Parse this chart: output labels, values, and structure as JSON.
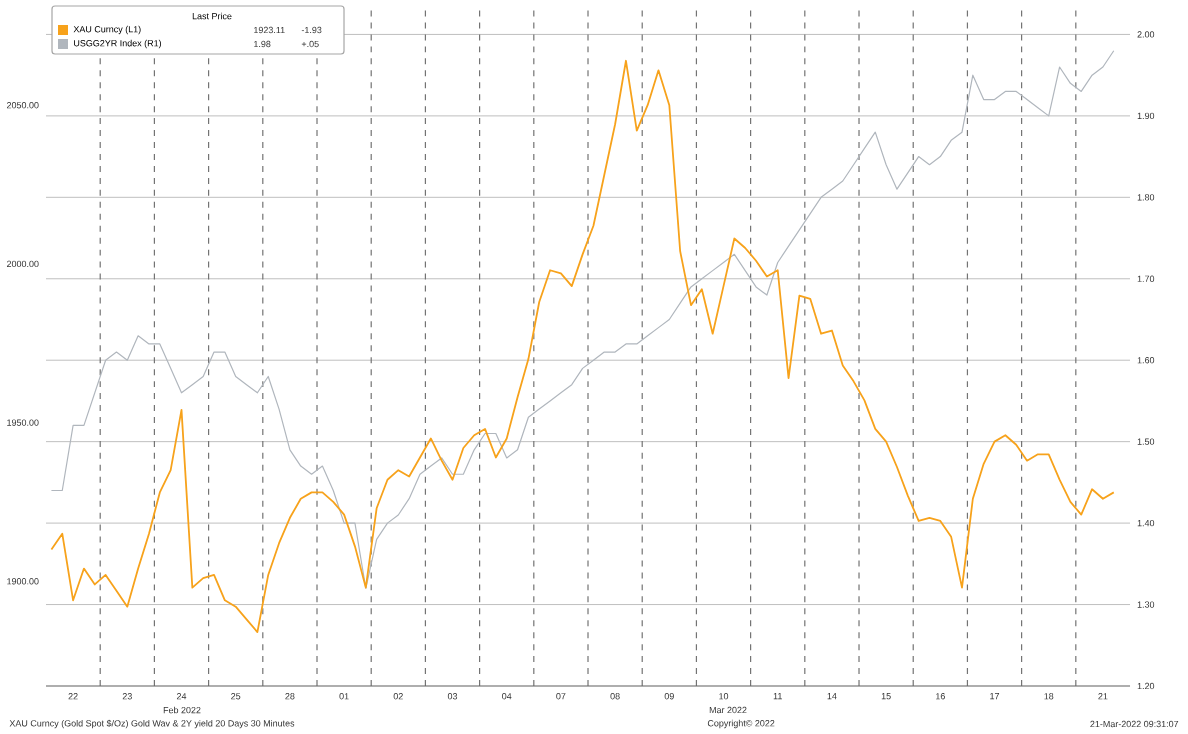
{
  "chart_data": {
    "type": "line",
    "legend_title": "Last Price",
    "legend": "top left",
    "grid": true,
    "categories": [
      null,
      null,
      "22",
      null,
      null,
      null,
      null,
      "23",
      null,
      null,
      null,
      null,
      "24",
      null,
      null,
      null,
      null,
      "25",
      null,
      null,
      null,
      null,
      "28",
      null,
      null,
      null,
      null,
      "01",
      null,
      null,
      null,
      null,
      "02",
      null,
      null,
      null,
      null,
      "03",
      null,
      null,
      null,
      null,
      "04",
      null,
      null,
      null,
      null,
      "07",
      null,
      null,
      null,
      null,
      "08",
      null,
      null,
      null,
      null,
      "09",
      null,
      null,
      null,
      null,
      "10",
      null,
      null,
      null,
      null,
      "11",
      null,
      null,
      null,
      null,
      "14",
      null,
      null,
      null,
      null,
      "15",
      null,
      null,
      null,
      null,
      "16",
      null,
      null,
      null,
      null,
      "17",
      null,
      null,
      null,
      null,
      "18",
      null,
      null,
      null,
      null,
      "21",
      null,
      null
    ],
    "ylim": [
      1867,
      2080
    ],
    "yticks": [
      {
        "value": 1900,
        "label": "1900.00"
      },
      {
        "value": 1950,
        "label": "1950.00"
      },
      {
        "value": 2000,
        "label": "2000.00"
      },
      {
        "value": 2050,
        "label": "2050.00"
      }
    ],
    "y2lim": [
      1.2,
      2.03
    ],
    "y2ticks": [
      {
        "value": 1.2,
        "label": "1.20"
      },
      {
        "value": 1.3,
        "label": "1.30"
      },
      {
        "value": 1.4,
        "label": "1.40"
      },
      {
        "value": 1.5,
        "label": "1.50"
      },
      {
        "value": 1.6,
        "label": "1.60"
      },
      {
        "value": 1.7,
        "label": "1.70"
      },
      {
        "value": 1.8,
        "label": "1.80"
      },
      {
        "value": 1.9,
        "label": "1.90"
      },
      {
        "value": 2.0,
        "label": "2.00"
      }
    ],
    "series": [
      {
        "name": "XAU Curncy (L1)",
        "color": "#f7a21b",
        "axis": "y",
        "values": [
          1910,
          1915,
          1894,
          1904,
          1899,
          1902,
          1897,
          1892,
          1904,
          1915,
          1928,
          1935,
          1954,
          1898,
          1901,
          1902,
          1894,
          1892,
          1888,
          1884,
          1902,
          1912,
          1920,
          1926,
          1928,
          1928,
          1925,
          1921,
          1911,
          1898,
          1923,
          1932,
          1935,
          1933,
          1939,
          1945,
          1938,
          1932,
          1942,
          1946,
          1948,
          1939,
          1945,
          1958,
          1970,
          1988,
          1998,
          1997,
          1993,
          2003,
          2012,
          2028,
          2044,
          2064,
          2042,
          2050,
          2061,
          2050,
          2004,
          1987,
          1992,
          1978,
          1993,
          2008,
          2005,
          2001,
          1996,
          1998,
          1964,
          1990,
          1989,
          1978,
          1979,
          1968,
          1963,
          1957,
          1948,
          1944,
          1936,
          1927,
          1919,
          1920,
          1919,
          1914,
          1898,
          1926,
          1937,
          1944,
          1946,
          1943,
          1938,
          1940,
          1940,
          1932,
          1925,
          1921,
          1929,
          1926,
          1928,
          null
        ]
      },
      {
        "name": "USGG2YR Index (R1)",
        "color": "#b0b6bd",
        "axis": "y2",
        "values": [
          1.44,
          1.44,
          1.52,
          1.52,
          1.56,
          1.6,
          1.61,
          1.6,
          1.63,
          1.62,
          1.62,
          1.59,
          1.56,
          1.57,
          1.58,
          1.61,
          1.61,
          1.58,
          1.57,
          1.56,
          1.58,
          1.54,
          1.49,
          1.47,
          1.46,
          1.47,
          1.44,
          1.4,
          1.4,
          1.32,
          1.38,
          1.4,
          1.41,
          1.43,
          1.46,
          1.47,
          1.48,
          1.46,
          1.46,
          1.49,
          1.51,
          1.51,
          1.48,
          1.49,
          1.53,
          1.54,
          1.55,
          1.56,
          1.57,
          1.59,
          1.6,
          1.61,
          1.61,
          1.62,
          1.62,
          1.63,
          1.64,
          1.65,
          1.67,
          1.69,
          1.7,
          1.71,
          1.72,
          1.73,
          1.71,
          1.69,
          1.68,
          1.72,
          1.74,
          1.76,
          1.78,
          1.8,
          1.81,
          1.82,
          1.84,
          1.86,
          1.88,
          1.84,
          1.81,
          1.83,
          1.85,
          1.84,
          1.85,
          1.87,
          1.88,
          1.95,
          1.92,
          1.92,
          1.93,
          1.93,
          1.92,
          1.91,
          1.9,
          1.96,
          1.94,
          1.93,
          1.95,
          1.96,
          1.98,
          null
        ]
      }
    ],
    "annotations": [
      "Feb 2022",
      "Mar 2022",
      "XAU Curncy (Gold Spot $/Oz) Gold Wav & 2Y yield 20 Days 30 Minutes",
      "Copyright© 2022",
      "21-Mar-2022 09:31:07",
      "1923.11",
      "-1.93",
      "1.98",
      "+.05"
    ]
  }
}
